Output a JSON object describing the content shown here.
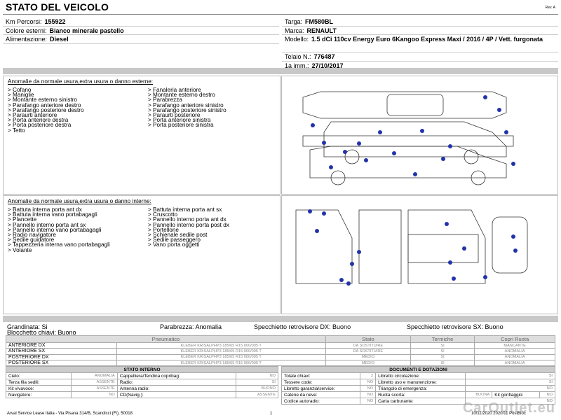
{
  "header": {
    "title": "STATO DEL VEICOLO",
    "rev": "Rev. A"
  },
  "info_left": [
    {
      "label": "Km Percorsi:",
      "value": "155922"
    },
    {
      "label": "Colore esterni:",
      "value": "Bianco minerale pastello"
    },
    {
      "label": "Alimentazione:",
      "value": "Diesel"
    }
  ],
  "info_right": [
    {
      "label": "Targa:",
      "value": "FM580BL"
    },
    {
      "label": "Marca:",
      "value": "RENAULT"
    },
    {
      "label": "Modello:",
      "value": "1.5 dCi 110cv Energy Euro 6Kangoo Express Maxi / 2016 / 4P / Vett. furgonata"
    },
    {
      "label": "Telaio N.:",
      "value": "776487"
    },
    {
      "label": "1a imm.:",
      "value": "27/10/2017"
    }
  ],
  "exterior": {
    "title": "Anomalie da normale usura,extra usura o danno esterne:",
    "col1": [
      "> Cofano",
      "> Maniglie",
      "> Montante esterno sinistro",
      "> Parafango anteriore destro",
      "> Parafango posteriore destro",
      "> Paraurti anteriore",
      "> Porta anteriore destra",
      "> Porta posteriore destra",
      "> Tetto"
    ],
    "col2": [
      "> Fanaleria anteriore",
      "> Montante esterno destro",
      "> Parabrezza",
      "> Parafango anteriore sinistro",
      "> Parafango posteriore sinistro",
      "> Paraurti posteriore",
      "> Porta anteriore sinistra",
      "> Porta posteriore sinistra"
    ]
  },
  "interior": {
    "title": "Anomalie da normale usura,extra usura o danno interne:",
    "col1": [
      "> Battuta interna porta ant dx",
      "> Battuta interna vano portabagagli",
      "> Plancette",
      "> Pannello interno porta ant sx",
      "> Pannello interno vano portabagagli",
      "> Radio navigatore",
      "> Sedile guidatore",
      "> Tappezzeria interna vano portabagagli",
      "> Volante"
    ],
    "col2": [
      "> Battuta interna porta ant sx",
      "> Cruscotto",
      "> Pannello interno porta ant dx",
      "> Pannello interno porta post dx",
      "> Portellone",
      "> Schienale sedile post",
      "> Sedile passeggero",
      "> Vano porta oggetti"
    ]
  },
  "status": {
    "grandinata": "Grandinata: Si",
    "blocchetto": "Blocchetto chiavi: Buono",
    "parabrezza": "Parabrezza: Anomalia",
    "specchietto_dx": "Specchietto retrovisore DX: Buono",
    "specchietto_sx": "Specchietto retrovisore SX: Buono"
  },
  "tires": {
    "headers": [
      "Pneumatico",
      "Stato",
      "Termiche",
      "Copri Ruota"
    ],
    "rows": [
      [
        "ANTERIORE DX",
        "KLEBER KRISALPHP3 185/65 R15 000/095 T",
        "DA SOSTITUIRE",
        "SI",
        "MANCANTE"
      ],
      [
        "ANTERIORE SX",
        "KLEBER KRISALPHP3 185/65 R15 000/095 T",
        "DA SOSTITUIRE",
        "SI",
        "ANOMALIA"
      ],
      [
        "POSTERIORE DX",
        "KLEBER KRISALPHP3 185/65 R15 000/095 T",
        "MEDIO",
        "SI",
        "ANOMALIA"
      ],
      [
        "POSTERIORE SX",
        "KLEBER KRISALPHP3 185/65 R15 000/095 T",
        "MEDIO",
        "SI",
        "ANOMALIA"
      ]
    ]
  },
  "stato_interno": {
    "title": "STATO INTERNO",
    "rows": [
      [
        "Cielo:",
        "ANOMALIA",
        "Cappelliera/Tendina copribag:",
        "NO"
      ],
      [
        "Terza fila sedili:",
        "ASSENTE",
        "Radio:",
        "SI"
      ],
      [
        "Kit vivavoce:",
        "ASSENTE",
        "Antenna radio:",
        "BUONO"
      ],
      [
        "Navigatore:",
        "NO",
        "CD(Navig.):",
        "ASSENTE"
      ]
    ]
  },
  "documenti": {
    "title": "DOCUMENTI E DOTAZIONI",
    "rows": [
      [
        "Totale chiavi:",
        "2",
        "Libretto circolazione:",
        "SI"
      ],
      [
        "Tessere code:",
        "NO",
        "Libretto uso e manutenzione:",
        "SI"
      ],
      [
        "Libretto garanzia/service:",
        "NO",
        "Triangolo di emergenza:",
        "NO"
      ],
      [
        "Catene da neve:",
        "NO",
        "Ruota scorta:",
        "BUONA",
        "Kit gonfiaggio:",
        "NO"
      ],
      [
        "Codice autoradio:",
        "NO",
        "Carta carburante:",
        "NO"
      ]
    ]
  },
  "footer": {
    "address": "Arval Service Lease Italia - Via Pisana 314/B, Scandicci (FI), 50018",
    "page": "1",
    "date": "10/11/2020 2020/11 PostBloc",
    "watermark": "CarOutlet.eu"
  }
}
